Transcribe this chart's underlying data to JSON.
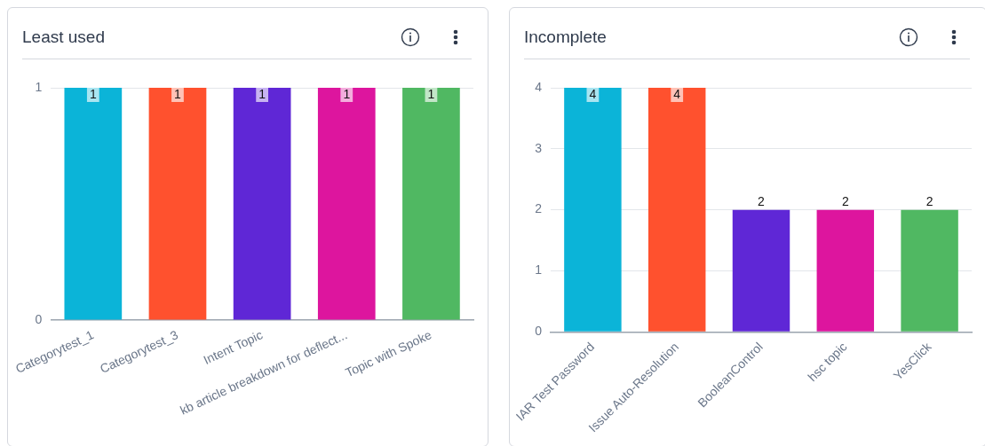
{
  "chart_data": [
    {
      "type": "bar",
      "title": "Least used",
      "categories": [
        "Categorytest_1",
        "Categorytest_3",
        "Intent Topic",
        "kb article breakdown for deflect...",
        "Topic with Spoke"
      ],
      "values": [
        1,
        1,
        1,
        1,
        1
      ],
      "colors": [
        "#0bb4d8",
        "#ff512e",
        "#5f27d6",
        "#dd159e",
        "#50b862"
      ],
      "ylim": [
        0,
        1
      ],
      "yticks": [
        0,
        1
      ],
      "grid": "y",
      "data_labels": true
    },
    {
      "type": "bar",
      "title": "Incomplete",
      "categories": [
        "IAR Test Password",
        "Issue Auto-Resolution",
        "BooleanControl",
        "hsc topic",
        "YesClick"
      ],
      "values": [
        4,
        4,
        2,
        2,
        2
      ],
      "colors": [
        "#0bb4d8",
        "#ff512e",
        "#5f27d6",
        "#dd159e",
        "#50b862"
      ],
      "ylim": [
        0,
        4
      ],
      "yticks": [
        0,
        1,
        2,
        3,
        4
      ],
      "grid": "y",
      "data_labels": true
    }
  ]
}
